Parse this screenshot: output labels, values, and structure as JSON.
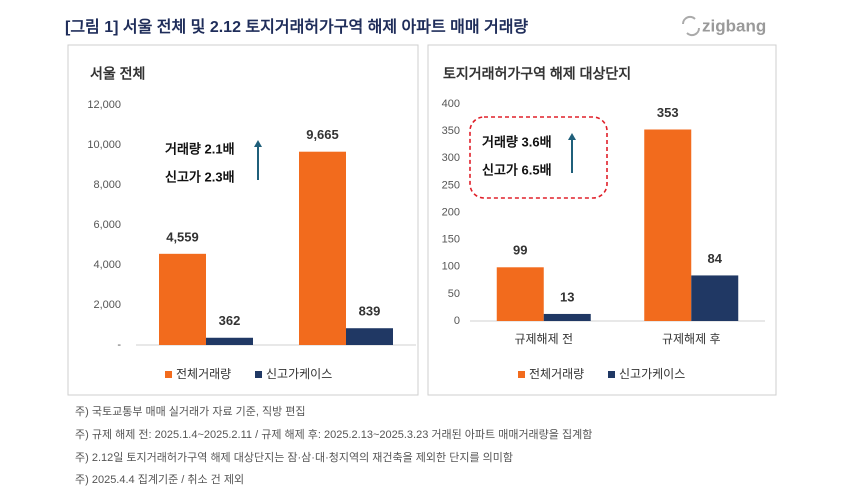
{
  "title": "[그림 1] 서울 전체 및 2.12 토지거래허가구역 해제 아파트 매매 거래량",
  "logo": "zigbang",
  "footnotes": [
    "주) 국토교통부 매매 실거래가 자료 기준, 직방 편집",
    "주) 규제 해제 전: 2025.1.4~2025.2.11 / 규제 해제 후: 2025.2.13~2025.3.23 거래된 아파트 매매거래량을 집계함",
    "주) 2.12일 토지거래허가구역 해제 대상단지는 잠·삼·대·청지역의 재건축을 제외한 단지를 의미함",
    "주) 2025.4.4 집계기준 / 취소 건 제외"
  ],
  "chart_data": [
    {
      "type": "bar",
      "title": "서울 전체",
      "categories": [
        null,
        null
      ],
      "series": [
        {
          "name": "전체거래량",
          "color": "#f26b1d",
          "values": [
            4559,
            9665
          ],
          "value_labels": [
            "4,559",
            "9,665"
          ]
        },
        {
          "name": "신고가케이스",
          "color": "#203864",
          "values": [
            362,
            839
          ],
          "value_labels": [
            "362",
            "839"
          ]
        }
      ],
      "ylim": [
        0,
        12000
      ],
      "yticks": [
        {
          "value": 0,
          "label": "-"
        },
        {
          "value": 2000,
          "label": "2,000"
        },
        {
          "value": 4000,
          "label": "4,000"
        },
        {
          "value": 6000,
          "label": "6,000"
        },
        {
          "value": 8000,
          "label": "8,000"
        },
        {
          "value": 10000,
          "label": "10,000"
        },
        {
          "value": 12000,
          "label": "12,000"
        }
      ],
      "annotations": [
        "거래량 2.1배",
        "신고가 2.3배"
      ],
      "legend": "bottom"
    },
    {
      "type": "bar",
      "title": "토지거래허가구역 해제 대상단지",
      "categories": [
        "규제해제 전",
        "규제해제 후"
      ],
      "series": [
        {
          "name": "전체거래량",
          "color": "#f26b1d",
          "values": [
            99,
            353
          ]
        },
        {
          "name": "신고가케이스",
          "color": "#203864",
          "values": [
            13,
            84
          ]
        }
      ],
      "ylim": [
        0,
        400
      ],
      "yticks": [
        0,
        50,
        100,
        150,
        200,
        250,
        300,
        350,
        400
      ],
      "annotations": [
        "거래량 3.6배",
        "신고가 6.5배"
      ],
      "legend": "bottom"
    }
  ]
}
